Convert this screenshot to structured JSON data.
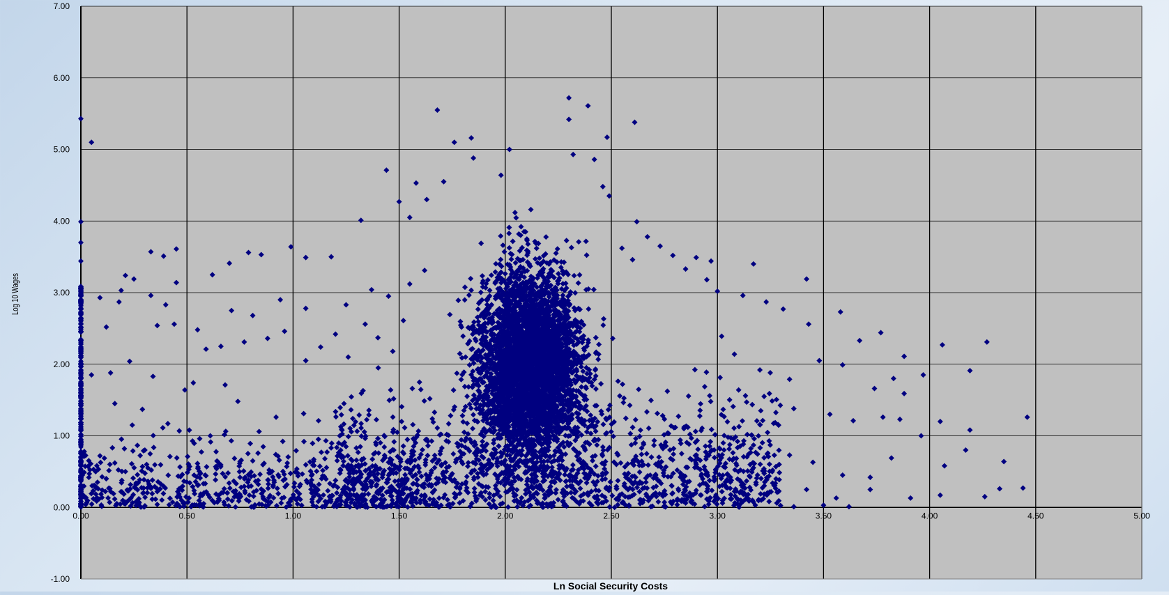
{
  "colors": {
    "plot_background": "#c0c0c0",
    "gridline": "#000000",
    "marker": "#000080",
    "axis_text": "#000000"
  },
  "chart_data": {
    "type": "scatter",
    "title": "",
    "xlabel": "Ln Social Security Costs",
    "ylabel": "Log 10 Wages",
    "xlim": [
      0,
      5
    ],
    "ylim": [
      -1,
      7
    ],
    "x_ticks": [
      0,
      0.5,
      1,
      1.5,
      2,
      2.5,
      3,
      3.5,
      4,
      4.5,
      5
    ],
    "x_tick_labels": [
      "0.00",
      "0.50",
      "1.00",
      "1.50",
      "2.00",
      "2.50",
      "3.00",
      "3.50",
      "4.00",
      "4.50",
      "5.00"
    ],
    "y_ticks": [
      -1,
      0,
      1,
      2,
      3,
      4,
      5,
      6,
      7
    ],
    "y_tick_labels": [
      "-1.00",
      "0.00",
      "1.00",
      "2.00",
      "3.00",
      "4.00",
      "5.00",
      "6.00",
      "7.00"
    ],
    "grid": true,
    "legend": "none",
    "marker": "diamond",
    "series": [
      {
        "values_description_free": true,
        "points": [
          [
            0.0,
            5.43
          ],
          [
            0.05,
            5.1
          ],
          [
            0.0,
            3.99
          ],
          [
            0.0,
            3.7
          ],
          [
            0.0,
            3.44
          ],
          [
            1.68,
            5.55
          ],
          [
            1.84,
            5.16
          ],
          [
            1.76,
            5.1
          ],
          [
            2.3,
            5.72
          ],
          [
            2.39,
            5.61
          ],
          [
            2.3,
            5.42
          ],
          [
            2.61,
            5.38
          ],
          [
            2.48,
            5.17
          ],
          [
            2.02,
            5.0
          ],
          [
            1.44,
            4.71
          ],
          [
            1.5,
            4.27
          ],
          [
            1.32,
            4.01
          ],
          [
            0.45,
            3.61
          ],
          [
            0.33,
            3.57
          ],
          [
            0.39,
            3.51
          ],
          [
            0.79,
            3.56
          ],
          [
            0.85,
            3.53
          ],
          [
            0.21,
            3.24
          ],
          [
            0.25,
            3.19
          ],
          [
            0.45,
            3.14
          ],
          [
            0.62,
            3.25
          ],
          [
            0.7,
            3.41
          ],
          [
            0.99,
            3.64
          ],
          [
            1.06,
            3.49
          ],
          [
            1.18,
            3.5
          ],
          [
            0.19,
            3.03
          ],
          [
            0.33,
            2.96
          ],
          [
            0.09,
            2.93
          ],
          [
            0.18,
            2.87
          ],
          [
            0.4,
            2.83
          ],
          [
            0.44,
            2.56
          ],
          [
            0.36,
            2.54
          ],
          [
            0.12,
            2.52
          ],
          [
            0.55,
            2.48
          ],
          [
            0.59,
            2.21
          ],
          [
            0.66,
            2.25
          ],
          [
            0.77,
            2.31
          ],
          [
            0.88,
            2.36
          ],
          [
            0.96,
            2.46
          ],
          [
            0.05,
            1.85
          ],
          [
            0.14,
            1.88
          ],
          [
            0.23,
            2.04
          ],
          [
            0.34,
            1.83
          ],
          [
            0.49,
            1.64
          ],
          [
            0.53,
            1.74
          ],
          [
            0.68,
            1.71
          ],
          [
            0.74,
            1.48
          ],
          [
            0.16,
            1.45
          ],
          [
            0.29,
            1.37
          ],
          [
            0.41,
            1.17
          ],
          [
            0.56,
            0.96
          ],
          [
            0.61,
            1.0
          ],
          [
            0.84,
            1.06
          ],
          [
            0.92,
            1.26
          ],
          [
            1.05,
            1.31
          ],
          [
            1.12,
            1.21
          ],
          [
            1.24,
            1.45
          ],
          [
            1.33,
            1.63
          ],
          [
            1.46,
            1.64
          ],
          [
            0.06,
            0.53
          ],
          [
            0.09,
            0.72
          ],
          [
            0.12,
            0.4
          ],
          [
            0.16,
            0.62
          ],
          [
            0.21,
            0.5
          ],
          [
            0.26,
            0.34
          ],
          [
            0.31,
            0.6
          ],
          [
            0.36,
            0.22
          ],
          [
            0.42,
            0.71
          ],
          [
            0.47,
            0.43
          ],
          [
            0.51,
            0.13
          ],
          [
            0.55,
            0.31
          ],
          [
            0.64,
            0.57
          ],
          [
            0.69,
            0.2
          ],
          [
            0.75,
            0.42
          ],
          [
            0.81,
            0.65
          ],
          [
            0.86,
            0.12
          ],
          [
            0.91,
            0.38
          ],
          [
            0.97,
            0.57
          ],
          [
            1.03,
            0.19
          ],
          [
            1.09,
            0.46
          ],
          [
            1.15,
            0.68
          ],
          [
            1.21,
            0.28
          ],
          [
            1.27,
            0.55
          ],
          [
            1.33,
            0.09
          ],
          [
            1.39,
            0.39
          ],
          [
            1.45,
            0.63
          ],
          [
            1.51,
            0.21
          ],
          [
            1.06,
            2.05
          ],
          [
            1.13,
            2.24
          ],
          [
            1.2,
            2.42
          ],
          [
            1.26,
            2.1
          ],
          [
            1.34,
            2.56
          ],
          [
            1.4,
            2.37
          ],
          [
            1.47,
            2.18
          ],
          [
            1.52,
            2.61
          ],
          [
            1.25,
            2.83
          ],
          [
            1.37,
            3.04
          ],
          [
            1.45,
            2.95
          ],
          [
            1.55,
            3.12
          ],
          [
            1.62,
            3.31
          ],
          [
            1.06,
            2.78
          ],
          [
            0.94,
            2.9
          ],
          [
            0.81,
            2.68
          ],
          [
            0.71,
            2.75
          ],
          [
            2.9,
            3.49
          ],
          [
            2.97,
            3.44
          ],
          [
            3.17,
            3.4
          ],
          [
            3.42,
            3.19
          ],
          [
            3.0,
            3.02
          ],
          [
            3.12,
            2.96
          ],
          [
            3.23,
            2.87
          ],
          [
            3.31,
            2.77
          ],
          [
            3.43,
            2.56
          ],
          [
            3.58,
            2.73
          ],
          [
            3.67,
            2.33
          ],
          [
            3.77,
            2.44
          ],
          [
            3.88,
            2.11
          ],
          [
            4.06,
            2.27
          ],
          [
            4.27,
            2.31
          ],
          [
            4.19,
            1.91
          ],
          [
            3.97,
            1.85
          ],
          [
            3.83,
            1.8
          ],
          [
            3.74,
            1.66
          ],
          [
            3.88,
            1.59
          ],
          [
            3.59,
            1.99
          ],
          [
            3.48,
            2.05
          ],
          [
            3.34,
            1.79
          ],
          [
            3.2,
            1.92
          ],
          [
            3.08,
            2.14
          ],
          [
            3.02,
            2.39
          ],
          [
            3.1,
            1.64
          ],
          [
            3.22,
            1.55
          ],
          [
            3.36,
            1.38
          ],
          [
            3.53,
            1.3
          ],
          [
            3.64,
            1.21
          ],
          [
            3.78,
            1.26
          ],
          [
            3.86,
            1.23
          ],
          [
            3.96,
            1.0
          ],
          [
            4.05,
            1.2
          ],
          [
            4.19,
            1.08
          ],
          [
            4.46,
            1.26
          ],
          [
            4.17,
            0.8
          ],
          [
            4.35,
            0.64
          ],
          [
            4.07,
            0.58
          ],
          [
            3.82,
            0.69
          ],
          [
            3.72,
            0.42
          ],
          [
            3.59,
            0.45
          ],
          [
            3.45,
            0.63
          ],
          [
            3.34,
            0.73
          ],
          [
            3.26,
            0.52
          ],
          [
            3.17,
            0.87
          ],
          [
            3.05,
            0.98
          ],
          [
            3.12,
            0.28
          ],
          [
            3.26,
            0.34
          ],
          [
            3.42,
            0.25
          ],
          [
            3.56,
            0.13
          ],
          [
            3.72,
            0.25
          ],
          [
            3.91,
            0.13
          ],
          [
            4.05,
            0.17
          ],
          [
            4.26,
            0.15
          ],
          [
            4.33,
            0.26
          ],
          [
            4.44,
            0.27
          ],
          [
            3.36,
            0.01
          ],
          [
            3.5,
            0.03
          ],
          [
            3.62,
            0.01
          ],
          [
            2.62,
            3.99
          ],
          [
            2.67,
            3.78
          ],
          [
            2.79,
            3.52
          ],
          [
            2.85,
            3.33
          ],
          [
            2.95,
            3.18
          ],
          [
            2.73,
            3.65
          ],
          [
            2.6,
            3.46
          ],
          [
            2.55,
            3.62
          ],
          [
            2.49,
            4.35
          ],
          [
            2.46,
            4.48
          ],
          [
            2.42,
            4.86
          ],
          [
            2.32,
            4.93
          ],
          [
            1.98,
            4.64
          ],
          [
            1.85,
            4.88
          ],
          [
            1.71,
            4.55
          ],
          [
            1.63,
            4.3
          ],
          [
            1.58,
            4.53
          ],
          [
            1.55,
            4.05
          ]
        ]
      }
    ]
  }
}
